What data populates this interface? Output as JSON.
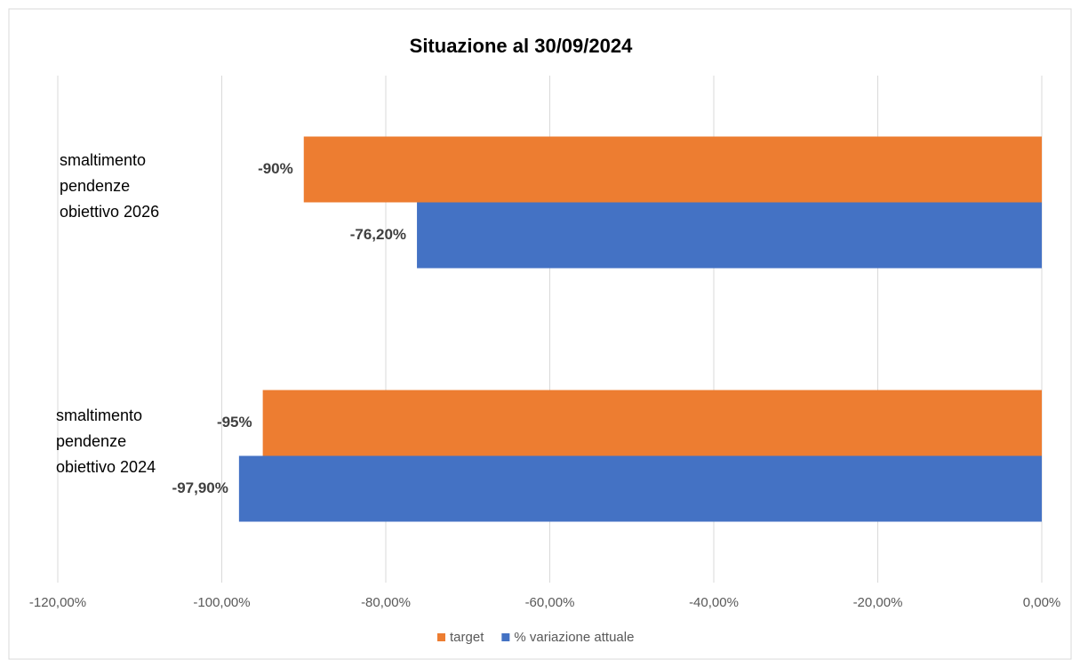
{
  "chart_data": {
    "type": "bar",
    "orientation": "horizontal",
    "title": "Situazione al 30/09/2024",
    "categories": [
      "smaltimento pendenze obiettivo 2026",
      "smaltimento pendenze obiettivo 2024"
    ],
    "series": [
      {
        "name": "target",
        "color": "#ED7D31",
        "values": [
          -90,
          -95
        ],
        "value_labels": [
          "-90%",
          "-95%"
        ]
      },
      {
        "name": "% variazione attuale",
        "color": "#4472C4",
        "values": [
          -76.2,
          -97.9
        ],
        "value_labels": [
          "-76,20%",
          "-97,90%"
        ]
      }
    ],
    "xlim": [
      -120,
      0
    ],
    "xticks": [
      {
        "value": -120,
        "label": "-120,00%"
      },
      {
        "value": -100,
        "label": "-100,00%"
      },
      {
        "value": -80,
        "label": "-80,00%"
      },
      {
        "value": -60,
        "label": "-60,00%"
      },
      {
        "value": -40,
        "label": "-40,00%"
      },
      {
        "value": -20,
        "label": "-20,00%"
      },
      {
        "value": 0,
        "label": "0,00%"
      }
    ],
    "grid": true,
    "legend": "bottom"
  }
}
